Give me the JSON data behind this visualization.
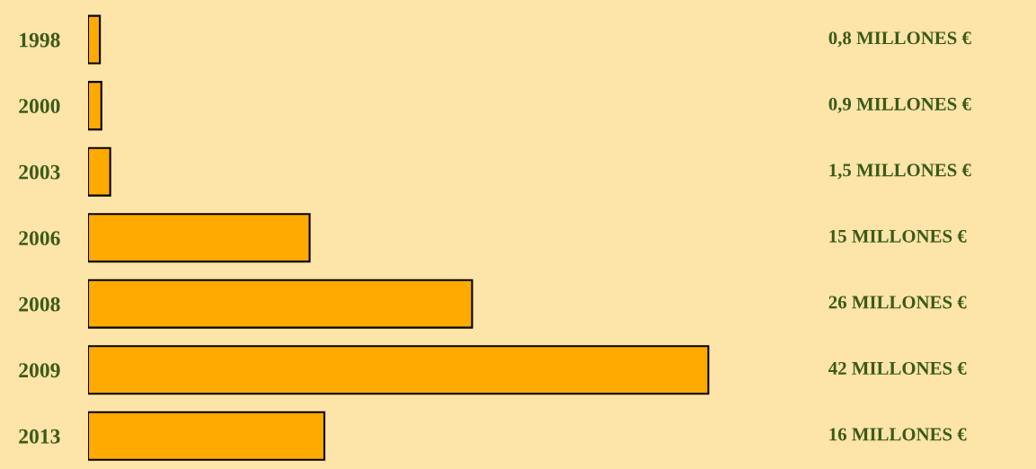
{
  "chart_data": {
    "type": "bar",
    "orientation": "horizontal",
    "categories": [
      "1998",
      "2000",
      "2003",
      "2006",
      "2008",
      "2009",
      "2013"
    ],
    "values": [
      0.8,
      0.9,
      1.5,
      15,
      26,
      42,
      16
    ],
    "value_labels": [
      "0,8 MILLONES €",
      "0,9 MILLONES €",
      "1,5 MILLONES €",
      "15 MILLONES €",
      "26 MILLONES €",
      "42 MILLONES €",
      "16 MILLONES €"
    ],
    "color": "#ffaa00",
    "tick_labels": "y",
    "grid": false,
    "legend": false
  }
}
